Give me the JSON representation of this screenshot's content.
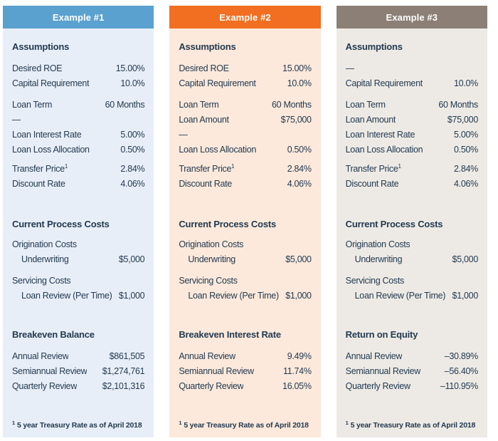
{
  "page": {
    "background": "#FFFFFF",
    "text_color": "#233A50"
  },
  "columns": [
    {
      "header": {
        "label": "Example #1",
        "bg": "#5AA1D0",
        "text_color": "#FFFFFF"
      },
      "body_bg": "#E8EEF8",
      "assumptions": {
        "title": "Assumptions",
        "group1": [
          {
            "label": "Desired ROE",
            "value": "15.00%"
          },
          {
            "label": "Capital Requirement",
            "value": "10.0%"
          }
        ],
        "group2": [
          {
            "label": "Loan Term",
            "value": "60 Months"
          },
          {
            "label": "—",
            "value": ""
          },
          {
            "label": "Loan Interest Rate",
            "value": "5.00%"
          },
          {
            "label": "Loan Loss Allocation",
            "value": "0.50%"
          }
        ],
        "group3": [
          {
            "label": "Transfer Price",
            "label_sup": "1",
            "value": "2.84%"
          },
          {
            "label": "Discount Rate",
            "value": "4.06%"
          }
        ]
      },
      "costs": {
        "title": "Current Process Costs",
        "origination_label": "Origination Costs",
        "origination_item": {
          "label": "Underwriting",
          "value": "$5,000"
        },
        "servicing_label": "Servicing Costs",
        "servicing_item": {
          "label": "Loan Review (Per Time)",
          "value": "$1,000"
        }
      },
      "result": {
        "title": "Breakeven Balance",
        "rows": [
          {
            "label": "Annual Review",
            "value": "$861,505"
          },
          {
            "label": "Semiannual Review",
            "value": "$1,274,761"
          },
          {
            "label": "Quarterly Review",
            "value": "$2,101,316"
          }
        ]
      },
      "footnote": {
        "sup": "1",
        "text": "5 year Treasury Rate as of April 2018"
      }
    },
    {
      "header": {
        "label": "Example #2",
        "bg": "#F26E21",
        "text_color": "#FFFFFF"
      },
      "body_bg": "#FCE9DB",
      "assumptions": {
        "title": "Assumptions",
        "group1": [
          {
            "label": "Desired ROE",
            "value": "15.00%"
          },
          {
            "label": "Capital Requirement",
            "value": "10.0%"
          }
        ],
        "group2": [
          {
            "label": "Loan Term",
            "value": "60 Months"
          },
          {
            "label": "Loan Amount",
            "value": "$75,000"
          },
          {
            "label": "—",
            "value": ""
          },
          {
            "label": "Loan Loss Allocation",
            "value": "0.50%"
          }
        ],
        "group3": [
          {
            "label": "Transfer Price",
            "label_sup": "1",
            "value": "2.84%"
          },
          {
            "label": "Discount Rate",
            "value": "4.06%"
          }
        ]
      },
      "costs": {
        "title": "Current Process Costs",
        "origination_label": "Origination Costs",
        "origination_item": {
          "label": "Underwriting",
          "value": "$5,000"
        },
        "servicing_label": "Servicing Costs",
        "servicing_item": {
          "label": "Loan Review (Per Time)",
          "value": "$1,000"
        }
      },
      "result": {
        "title": "Breakeven Interest Rate",
        "rows": [
          {
            "label": "Annual Review",
            "value": "9.49%"
          },
          {
            "label": "Semiannual Review",
            "value": "11.74%"
          },
          {
            "label": "Quarterly Review",
            "value": "16.05%"
          }
        ]
      },
      "footnote": {
        "sup": "1",
        "text": "5 year Treasury Rate as of April 2018"
      }
    },
    {
      "header": {
        "label": "Example #3",
        "bg": "#8C8076",
        "text_color": "#FFFFFF"
      },
      "body_bg": "#EDEAE5",
      "assumptions": {
        "title": "Assumptions",
        "group1": [
          {
            "label": "—",
            "value": ""
          },
          {
            "label": "Capital Requirement",
            "value": "10.0%"
          }
        ],
        "group2": [
          {
            "label": "Loan Term",
            "value": "60 Months"
          },
          {
            "label": "Loan Amount",
            "value": "$75,000"
          },
          {
            "label": "Loan Interest Rate",
            "value": "5.00%"
          },
          {
            "label": "Loan Loss Allocation",
            "value": "0.50%"
          }
        ],
        "group3": [
          {
            "label": "Transfer Price",
            "label_sup": "1",
            "value": "2.84%"
          },
          {
            "label": "Discount Rate",
            "value": "4.06%"
          }
        ]
      },
      "costs": {
        "title": "Current Process Costs",
        "origination_label": "Origination Costs",
        "origination_item": {
          "label": "Underwriting",
          "value": "$5,000"
        },
        "servicing_label": "Servicing Costs",
        "servicing_item": {
          "label": "Loan Review (Per Time)",
          "value": "$1,000"
        }
      },
      "result": {
        "title": "Return on Equity",
        "rows": [
          {
            "label": "Annual Review",
            "value": "–30.89%"
          },
          {
            "label": "Semiannual Review",
            "value": "–56.40%"
          },
          {
            "label": "Quarterly Review",
            "value": "–110.95%"
          }
        ]
      },
      "footnote": {
        "sup": "1",
        "text": "5 year Treasury Rate as of April 2018"
      }
    }
  ]
}
